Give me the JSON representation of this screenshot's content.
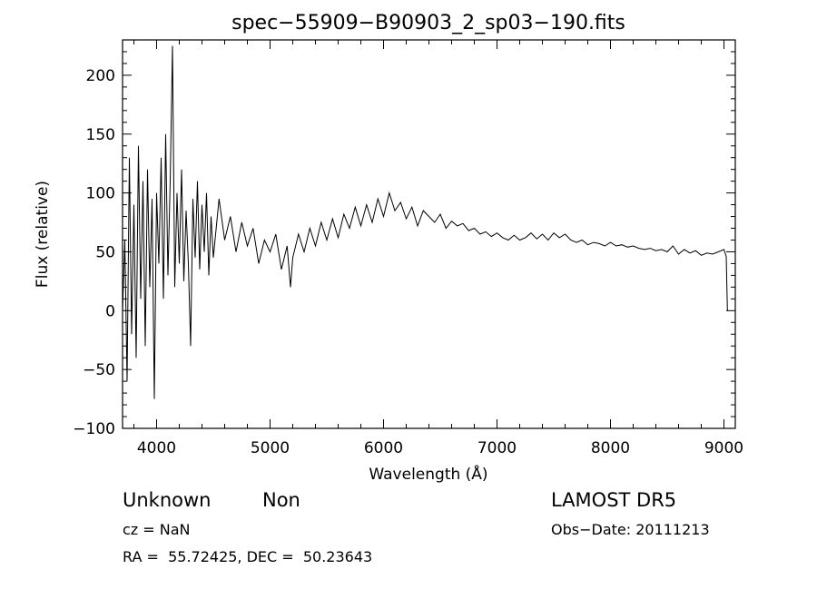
{
  "chart_data": {
    "type": "line",
    "title": "spec−55909−B90903_2_sp03−190.fits",
    "xlabel": "Wavelength (Å)",
    "ylabel": "Flux (relative)",
    "xlim": [
      3700,
      9100
    ],
    "ylim": [
      -100,
      230
    ],
    "xticks": [
      4000,
      5000,
      6000,
      7000,
      8000,
      9000
    ],
    "yticks": [
      -100,
      -50,
      0,
      50,
      100,
      150,
      200
    ],
    "yticklabels": [
      "−100",
      "−50",
      "0",
      "50",
      "100",
      "150",
      "200"
    ],
    "grid": false,
    "legend": "none",
    "series": [
      {
        "values": [
          [
            3700,
            0
          ],
          [
            3720,
            60
          ],
          [
            3740,
            -60
          ],
          [
            3760,
            130
          ],
          [
            3780,
            -20
          ],
          [
            3800,
            90
          ],
          [
            3820,
            -40
          ],
          [
            3840,
            140
          ],
          [
            3860,
            10
          ],
          [
            3880,
            110
          ],
          [
            3900,
            -30
          ],
          [
            3920,
            120
          ],
          [
            3940,
            20
          ],
          [
            3960,
            95
          ],
          [
            3980,
            -75
          ],
          [
            4000,
            100
          ],
          [
            4020,
            40
          ],
          [
            4040,
            130
          ],
          [
            4060,
            10
          ],
          [
            4080,
            150
          ],
          [
            4100,
            30
          ],
          [
            4120,
            110
          ],
          [
            4140,
            225
          ],
          [
            4160,
            20
          ],
          [
            4180,
            100
          ],
          [
            4200,
            40
          ],
          [
            4220,
            120
          ],
          [
            4240,
            25
          ],
          [
            4260,
            85
          ],
          [
            4280,
            40
          ],
          [
            4300,
            -30
          ],
          [
            4320,
            95
          ],
          [
            4340,
            45
          ],
          [
            4360,
            110
          ],
          [
            4380,
            35
          ],
          [
            4400,
            90
          ],
          [
            4420,
            50
          ],
          [
            4440,
            100
          ],
          [
            4460,
            30
          ],
          [
            4480,
            80
          ],
          [
            4500,
            45
          ],
          [
            4550,
            95
          ],
          [
            4600,
            60
          ],
          [
            4650,
            80
          ],
          [
            4700,
            50
          ],
          [
            4750,
            75
          ],
          [
            4800,
            55
          ],
          [
            4850,
            70
          ],
          [
            4900,
            40
          ],
          [
            4950,
            60
          ],
          [
            5000,
            50
          ],
          [
            5050,
            65
          ],
          [
            5100,
            35
          ],
          [
            5150,
            55
          ],
          [
            5180,
            20
          ],
          [
            5200,
            45
          ],
          [
            5250,
            65
          ],
          [
            5300,
            50
          ],
          [
            5350,
            70
          ],
          [
            5400,
            55
          ],
          [
            5450,
            75
          ],
          [
            5500,
            60
          ],
          [
            5550,
            78
          ],
          [
            5600,
            62
          ],
          [
            5650,
            82
          ],
          [
            5700,
            70
          ],
          [
            5750,
            88
          ],
          [
            5800,
            72
          ],
          [
            5850,
            90
          ],
          [
            5900,
            75
          ],
          [
            5950,
            95
          ],
          [
            6000,
            80
          ],
          [
            6050,
            100
          ],
          [
            6100,
            85
          ],
          [
            6150,
            92
          ],
          [
            6200,
            78
          ],
          [
            6250,
            88
          ],
          [
            6300,
            72
          ],
          [
            6350,
            85
          ],
          [
            6400,
            80
          ],
          [
            6450,
            75
          ],
          [
            6500,
            82
          ],
          [
            6550,
            70
          ],
          [
            6600,
            76
          ],
          [
            6650,
            72
          ],
          [
            6700,
            74
          ],
          [
            6750,
            68
          ],
          [
            6800,
            70
          ],
          [
            6850,
            65
          ],
          [
            6900,
            67
          ],
          [
            6950,
            63
          ],
          [
            7000,
            66
          ],
          [
            7050,
            62
          ],
          [
            7100,
            60
          ],
          [
            7150,
            64
          ],
          [
            7200,
            60
          ],
          [
            7250,
            62
          ],
          [
            7300,
            66
          ],
          [
            7350,
            61
          ],
          [
            7400,
            65
          ],
          [
            7450,
            60
          ],
          [
            7500,
            66
          ],
          [
            7550,
            62
          ],
          [
            7600,
            65
          ],
          [
            7650,
            60
          ],
          [
            7700,
            58
          ],
          [
            7750,
            60
          ],
          [
            7800,
            56
          ],
          [
            7850,
            58
          ],
          [
            7900,
            57
          ],
          [
            7950,
            55
          ],
          [
            8000,
            58
          ],
          [
            8050,
            55
          ],
          [
            8100,
            56
          ],
          [
            8150,
            54
          ],
          [
            8200,
            55
          ],
          [
            8250,
            53
          ],
          [
            8300,
            52
          ],
          [
            8350,
            53
          ],
          [
            8400,
            51
          ],
          [
            8450,
            52
          ],
          [
            8500,
            50
          ],
          [
            8550,
            55
          ],
          [
            8600,
            48
          ],
          [
            8650,
            52
          ],
          [
            8700,
            49
          ],
          [
            8750,
            51
          ],
          [
            8800,
            47
          ],
          [
            8850,
            49
          ],
          [
            8900,
            48
          ],
          [
            8950,
            50
          ],
          [
            9000,
            52
          ],
          [
            9020,
            46
          ],
          [
            9030,
            0
          ]
        ]
      }
    ]
  },
  "info": {
    "object_class": "Unknown",
    "subclass": "Non",
    "survey": "LAMOST DR5",
    "cz": "cz = NaN",
    "obs_date": "Obs−Date: 20111213",
    "coords": "RA =  55.72425, DEC =  50.23643"
  }
}
